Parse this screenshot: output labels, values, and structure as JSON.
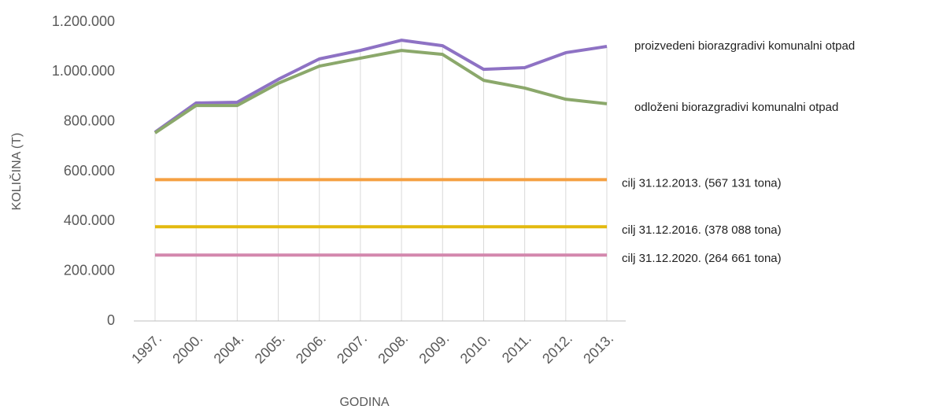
{
  "chart_data": {
    "type": "line",
    "x_label": "GODINA",
    "y_label": "KOLIČINA (T)",
    "categories": [
      "1997.",
      "2000.",
      "2004.",
      "2005.",
      "2006.",
      "2007.",
      "2008.",
      "2009.",
      "2010.",
      "2011.",
      "2012.",
      "2013."
    ],
    "series": [
      {
        "name": "proizvedeni biorazgradivi komunalni otpad",
        "color": "#8e72c4",
        "values": [
          758000,
          875000,
          878000,
          970000,
          1052000,
          1086000,
          1127000,
          1105000,
          1010000,
          1017000,
          1077000,
          1102000
        ]
      },
      {
        "name": "odloženi biorazgradivi komunalni otpad",
        "color": "#8ba86b",
        "values": [
          755000,
          865000,
          865000,
          954000,
          1023000,
          1055000,
          1086000,
          1070000,
          966000,
          935000,
          890000,
          872000
        ]
      },
      {
        "name": "cilj 31.12.2013. (567 131 tona)",
        "color": "#f5a042",
        "values": [
          567131,
          567131,
          567131,
          567131,
          567131,
          567131,
          567131,
          567131,
          567131,
          567131,
          567131,
          567131
        ]
      },
      {
        "name": "cilj 31.12.2016. (378 088 tona)",
        "color": "#e3b90f",
        "values": [
          378088,
          378088,
          378088,
          378088,
          378088,
          378088,
          378088,
          378088,
          378088,
          378088,
          378088,
          378088
        ]
      },
      {
        "name": "cilj 31.12.2020. (264 661 tona)",
        "color": "#d388ad",
        "values": [
          264661,
          264661,
          264661,
          264661,
          264661,
          264661,
          264661,
          264661,
          264661,
          264661,
          264661,
          264661
        ]
      }
    ],
    "ylim": [
      0,
      1200000
    ],
    "yticks": [
      0,
      {
        "value": 200000,
        "label": "200.000"
      },
      {
        "value": 400000,
        "label": "400.000"
      },
      {
        "value": 600000,
        "label": "600.000"
      },
      {
        "value": 800000,
        "label": "800.000"
      },
      {
        "value": 1000000,
        "label": "1.000.000"
      },
      {
        "value": 1200000,
        "label": "1.200.000"
      }
    ],
    "drop_lines": true
  }
}
